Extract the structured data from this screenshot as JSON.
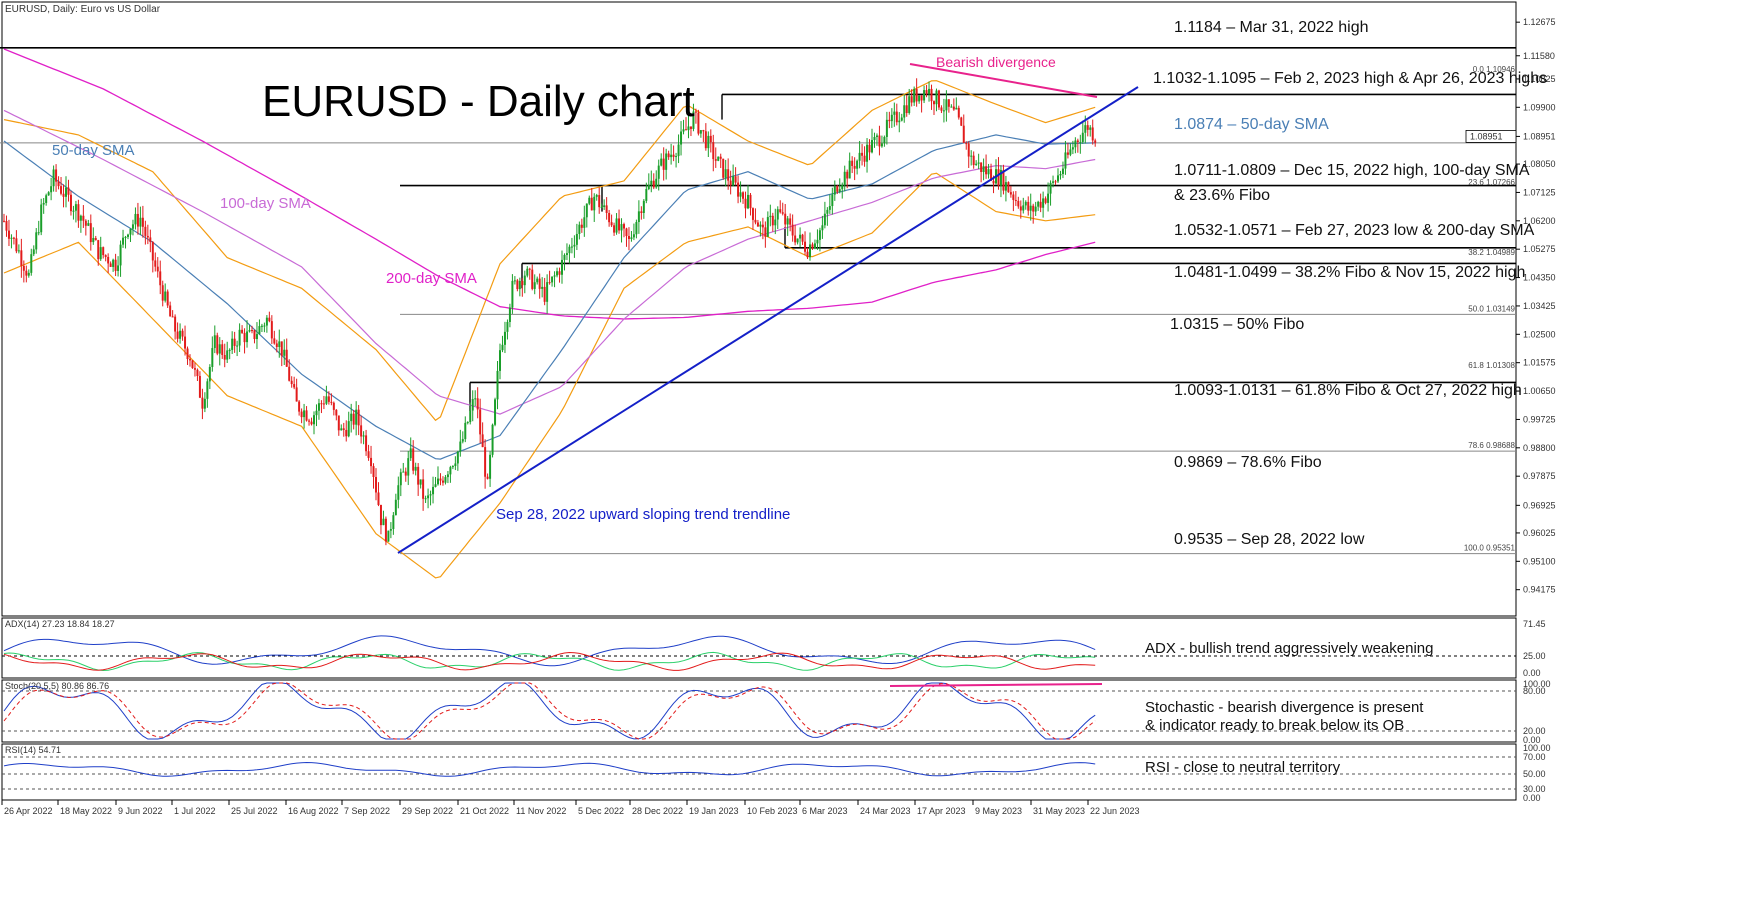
{
  "header": {
    "symbol_line": "EURUSD, Daily:  Euro vs US Dollar"
  },
  "chart_title": "EURUSD - Daily chart",
  "colors": {
    "bull": "#1a9e2a",
    "bear": "#e21b1b",
    "sma50": "#4a7fb5",
    "sma100": "#c86bd6",
    "sma200": "#e020c8",
    "bollinger": "#f39c12",
    "trendline": "#1420c8",
    "divergence": "#e8228c",
    "adx": "#1f3fc8",
    "di_plus": "#2bd06a",
    "di_minus": "#e21b1b"
  },
  "chart_data": {
    "type": "candlestick",
    "title": "EURUSD - Daily chart",
    "xlabel": "",
    "ylabel": "",
    "ylim": [
      0.9335,
      1.133
    ],
    "y_ticks": [
      "1.12675",
      "1.11580",
      "1.10825",
      "1.09900",
      "1.08951",
      "1.08050",
      "1.07125",
      "1.06200",
      "1.05275",
      "1.04350",
      "1.03425",
      "1.02500",
      "1.01575",
      "1.00650",
      "0.99725",
      "0.98800",
      "0.97875",
      "0.96925",
      "0.96025",
      "0.95100",
      "0.94175"
    ],
    "current_price": "1.08951",
    "x_ticks": [
      "26 Apr 2022",
      "18 May 2022",
      "9 Jun 2022",
      "1 Jul 2022",
      "25 Jul 2022",
      "16 Aug 2022",
      "7 Sep 2022",
      "29 Sep 2022",
      "21 Oct 2022",
      "11 Nov 2022",
      "5 Dec 2022",
      "28 Dec 2022",
      "19 Jan 2023",
      "10 Feb 2023",
      "6 Mar 2023",
      "24 Mar 2023",
      "17 Apr 2023",
      "9 May 2023",
      "31 May 2023",
      "22 Jun 2023"
    ],
    "price_path": [
      [
        0,
        1.062
      ],
      [
        6,
        1.052
      ],
      [
        10,
        1.044
      ],
      [
        15,
        1.065
      ],
      [
        20,
        1.076
      ],
      [
        25,
        1.07
      ],
      [
        31,
        1.064
      ],
      [
        38,
        1.052
      ],
      [
        45,
        1.048
      ],
      [
        50,
        1.06
      ],
      [
        55,
        1.063
      ],
      [
        62,
        1.044
      ],
      [
        68,
        1.028
      ],
      [
        75,
        1.018
      ],
      [
        80,
        1.003
      ],
      [
        85,
        1.022
      ],
      [
        90,
        1.018
      ],
      [
        95,
        1.025
      ],
      [
        100,
        1.024
      ],
      [
        106,
        1.03
      ],
      [
        112,
        1.02
      ],
      [
        118,
        1.002
      ],
      [
        124,
        0.998
      ],
      [
        130,
        1.005
      ],
      [
        136,
        0.993
      ],
      [
        142,
        0.998
      ],
      [
        148,
        0.985
      ],
      [
        152,
        0.965
      ],
      [
        155,
        0.958
      ],
      [
        158,
        0.9735
      ],
      [
        164,
        0.985
      ],
      [
        170,
        0.97
      ],
      [
        178,
        0.98
      ],
      [
        184,
        0.988
      ],
      [
        190,
        1.005
      ],
      [
        195,
        0.975
      ],
      [
        200,
        1.02
      ],
      [
        205,
        1.04
      ],
      [
        210,
        1.045
      ],
      [
        218,
        1.038
      ],
      [
        225,
        1.048
      ],
      [
        232,
        1.06
      ],
      [
        238,
        1.07
      ],
      [
        245,
        1.062
      ],
      [
        252,
        1.055
      ],
      [
        258,
        1.07
      ],
      [
        265,
        1.08
      ],
      [
        272,
        1.087
      ],
      [
        278,
        1.096
      ],
      [
        282,
        1.09
      ],
      [
        287,
        1.082
      ],
      [
        292,
        1.076
      ],
      [
        300,
        1.068
      ],
      [
        306,
        1.058
      ],
      [
        312,
        1.065
      ],
      [
        318,
        1.058
      ],
      [
        324,
        1.053
      ],
      [
        330,
        1.06
      ],
      [
        336,
        1.074
      ],
      [
        342,
        1.08
      ],
      [
        348,
        1.085
      ],
      [
        354,
        1.09
      ],
      [
        360,
        1.096
      ],
      [
        366,
        1.102
      ],
      [
        372,
        1.105
      ],
      [
        378,
        1.1
      ],
      [
        384,
        1.096
      ],
      [
        390,
        1.082
      ],
      [
        396,
        1.078
      ],
      [
        402,
        1.076
      ],
      [
        408,
        1.069
      ],
      [
        414,
        1.065
      ],
      [
        420,
        1.07
      ],
      [
        426,
        1.078
      ],
      [
        432,
        1.088
      ],
      [
        437,
        1.093
      ],
      [
        440,
        1.0895
      ]
    ],
    "sma50_path": [
      [
        0,
        1.088
      ],
      [
        30,
        1.07
      ],
      [
        60,
        1.055
      ],
      [
        90,
        1.035
      ],
      [
        120,
        1.012
      ],
      [
        150,
        0.995
      ],
      [
        175,
        0.984
      ],
      [
        200,
        0.992
      ],
      [
        225,
        1.02
      ],
      [
        250,
        1.05
      ],
      [
        275,
        1.072
      ],
      [
        300,
        1.078
      ],
      [
        325,
        1.069
      ],
      [
        350,
        1.074
      ],
      [
        375,
        1.085
      ],
      [
        400,
        1.09
      ],
      [
        420,
        1.087
      ],
      [
        440,
        1.0874
      ]
    ],
    "sma100_path": [
      [
        0,
        1.098
      ],
      [
        40,
        1.082
      ],
      [
        80,
        1.065
      ],
      [
        120,
        1.047
      ],
      [
        150,
        1.022
      ],
      [
        175,
        1.005
      ],
      [
        200,
        0.999
      ],
      [
        225,
        1.008
      ],
      [
        250,
        1.03
      ],
      [
        275,
        1.047
      ],
      [
        300,
        1.056
      ],
      [
        325,
        1.062
      ],
      [
        350,
        1.068
      ],
      [
        375,
        1.076
      ],
      [
        400,
        1.08
      ],
      [
        420,
        1.079
      ],
      [
        440,
        1.082
      ]
    ],
    "sma200_path": [
      [
        0,
        1.118
      ],
      [
        40,
        1.105
      ],
      [
        80,
        1.088
      ],
      [
        120,
        1.07
      ],
      [
        150,
        1.056
      ],
      [
        175,
        1.044
      ],
      [
        200,
        1.034
      ],
      [
        225,
        1.031
      ],
      [
        250,
        1.03
      ],
      [
        275,
        1.0305
      ],
      [
        300,
        1.0325
      ],
      [
        325,
        1.0335
      ],
      [
        350,
        1.0355
      ],
      [
        375,
        1.042
      ],
      [
        400,
        1.046
      ],
      [
        420,
        1.051
      ],
      [
        440,
        1.055
      ]
    ],
    "bb_upper_path": [
      [
        0,
        1.095
      ],
      [
        30,
        1.09
      ],
      [
        60,
        1.078
      ],
      [
        90,
        1.05
      ],
      [
        120,
        1.04
      ],
      [
        150,
        1.02
      ],
      [
        175,
        0.996
      ],
      [
        200,
        1.048
      ],
      [
        225,
        1.07
      ],
      [
        250,
        1.075
      ],
      [
        275,
        1.1
      ],
      [
        300,
        1.088
      ],
      [
        325,
        1.08
      ],
      [
        350,
        1.098
      ],
      [
        375,
        1.108
      ],
      [
        400,
        1.1
      ],
      [
        420,
        1.094
      ],
      [
        440,
        1.099
      ]
    ],
    "bb_lower_path": [
      [
        0,
        1.045
      ],
      [
        30,
        1.055
      ],
      [
        60,
        1.03
      ],
      [
        90,
        1.005
      ],
      [
        120,
        0.995
      ],
      [
        150,
        0.96
      ],
      [
        175,
        0.945
      ],
      [
        200,
        0.97
      ],
      [
        225,
        1.0
      ],
      [
        250,
        1.04
      ],
      [
        275,
        1.055
      ],
      [
        300,
        1.06
      ],
      [
        325,
        1.05
      ],
      [
        350,
        1.058
      ],
      [
        375,
        1.078
      ],
      [
        400,
        1.065
      ],
      [
        420,
        1.062
      ],
      [
        440,
        1.064
      ]
    ],
    "series": [
      {
        "name": "50-day SMA"
      },
      {
        "name": "100-day SMA"
      },
      {
        "name": "200-day SMA"
      }
    ],
    "support_resistance": [
      {
        "label": "1.1184 – Mar 31, 2022 high",
        "y": 1.1184
      },
      {
        "label": "1.1032-1.1095 – Feb 2, 2023 high & Apr 26, 2023 highs",
        "y": 1.1032
      },
      {
        "label": "1.0874 – 50-day SMA",
        "y": 1.0874
      },
      {
        "label": "1.0711-1.0809 – Dec 15, 2022 high, 100-day SMA",
        "label2": "& 23.6% Fibo",
        "y": 1.0735
      },
      {
        "label": "1.0532-1.0571 – Feb 27, 2023 low & 200-day SMA",
        "y": 1.0532
      },
      {
        "label": "1.0481-1.0499 – 38.2% Fibo & Nov 15, 2022 high",
        "y": 1.0481
      },
      {
        "label": "1.0315 – 50% Fibo",
        "y": 1.0315
      },
      {
        "label": "1.0093-1.0131 – 61.8% Fibo & Oct 27, 2022 high",
        "y": 1.0093
      },
      {
        "label": "0.9869 – 78.6% Fibo",
        "y": 0.9869
      },
      {
        "label": "0.9535 – Sep 28, 2022 low",
        "y": 0.9535
      }
    ],
    "fibo_labels": [
      "0.0 1.10946",
      "23.6 1.07266",
      "38.2 1.04989",
      "50.0 1.03149",
      "61.8 1.01308",
      "78.6 0.98688",
      "100.0 0.95351"
    ],
    "annotations": {
      "bearish_divergence": "Bearish divergence",
      "trendline": "Sep 28, 2022 upward sloping trend trendline",
      "sma50_label": "50-day SMA",
      "sma100_label": "100-day SMA",
      "sma200_label": "200-day SMA"
    },
    "indicators": [
      {
        "name": "ADX(14) 27.23 18.84 18.27",
        "ticks": [
          "71.45",
          "25.00",
          "0.00"
        ],
        "note": "ADX - bullish trend aggressively weakening"
      },
      {
        "name": "Stoch(20,5,5) 80.86 86.76",
        "ticks": [
          "100.00",
          "80.00",
          "20.00",
          "0.00"
        ],
        "note": "Stochastic - bearish divergence is present",
        "note2": "& indicator ready to break below its OB"
      },
      {
        "name": "RSI(14) 54.71",
        "ticks": [
          "100.00",
          "70.00",
          "50.00",
          "30.00",
          "0.00"
        ],
        "note": "RSI - close to neutral territory"
      }
    ]
  }
}
